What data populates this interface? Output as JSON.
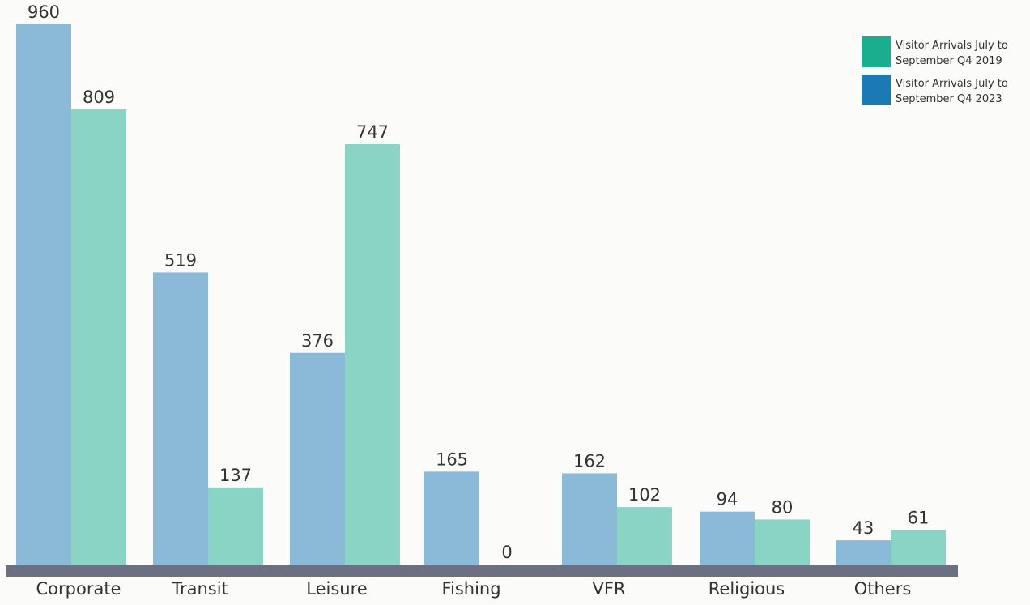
{
  "chart_data": {
    "type": "bar",
    "categories": [
      "Corporate",
      "Transit",
      "Leisure",
      "Fishing",
      "VFR",
      "Religious",
      "Others"
    ],
    "series": [
      {
        "name": "Visitor Arrivals July to September Q4 2019",
        "color": "#1aae8f",
        "values": [
          809,
          137,
          747,
          0,
          102,
          80,
          61
        ]
      },
      {
        "name": "Visitor Arrivals July to September Q4 2023",
        "color": "#1a7ab5",
        "values": [
          960,
          519,
          376,
          165,
          162,
          94,
          43
        ]
      }
    ]
  }
}
